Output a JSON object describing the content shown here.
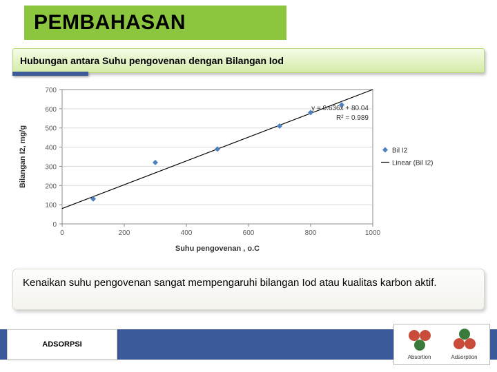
{
  "title": "PEMBAHASAN",
  "subtitle": "Hubungan antara Suhu pengovenan dengan Bilangan Iod",
  "footer_label": "ADSORPSI",
  "description": "Kenaikan suhu pengovenan sangat mempengaruhi bilangan Iod atau kualitas karbon aktif.",
  "chart": {
    "type": "scatter-with-trendline",
    "xlabel": "Suhu pengovenan , o.C",
    "ylabel": "Bilangan I2, mg/g",
    "label_fontsize": 11,
    "xlim": [
      0,
      1000
    ],
    "ylim": [
      0,
      700
    ],
    "xtick_step": 200,
    "ytick_step": 100,
    "grid_color": "#d9d9d9",
    "axis_color": "#888888",
    "background_color": "#ffffff",
    "tick_font_color": "#5a5a5a",
    "tick_fontsize": 10,
    "series": {
      "name": "Bil I2",
      "marker": "diamond",
      "marker_color": "#4f81bd",
      "marker_size": 8,
      "points": [
        {
          "x": 100,
          "y": 130
        },
        {
          "x": 300,
          "y": 320
        },
        {
          "x": 500,
          "y": 390
        },
        {
          "x": 700,
          "y": 510
        },
        {
          "x": 800,
          "y": 580
        },
        {
          "x": 900,
          "y": 620
        }
      ]
    },
    "trendline": {
      "name": "Linear (Bil I2)",
      "color": "#000000",
      "width": 1.2,
      "slope": 0.636,
      "intercept": 80.04,
      "equation": "y = 0.636x + 80.04",
      "r2_label": "R² = 0.989"
    },
    "legend": {
      "position": "right",
      "items": [
        "Bil I2",
        "Linear (Bil I2)"
      ]
    }
  },
  "molecules": {
    "left": {
      "label": "Absortion",
      "colors": [
        "#c94d3a",
        "#c94d3a",
        "#3a7a3a"
      ]
    },
    "right": {
      "label": "Adsorption",
      "colors": [
        "#3a7a3a",
        "#c94d3a",
        "#c94d3a"
      ]
    }
  }
}
